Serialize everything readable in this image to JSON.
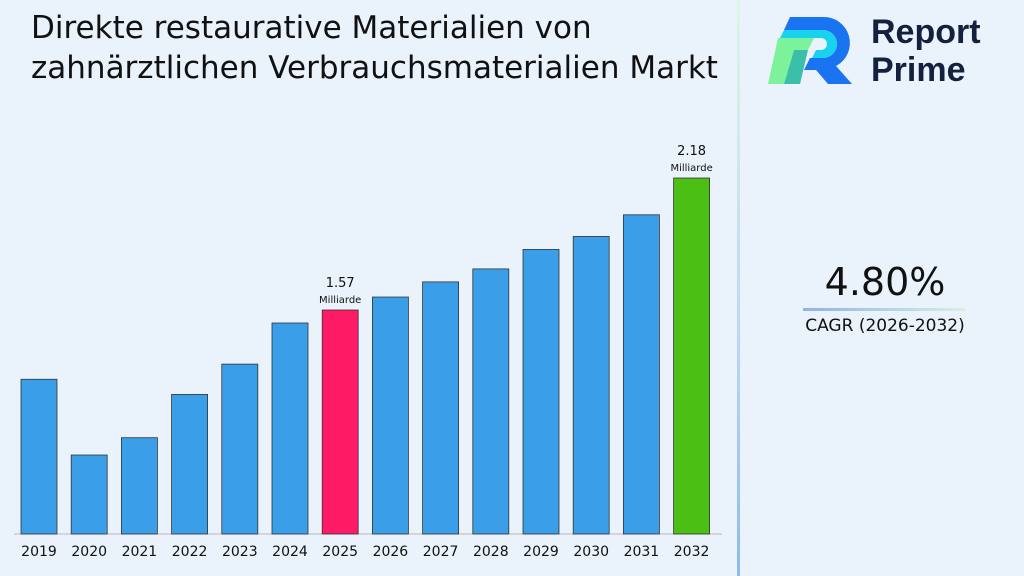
{
  "chart_data": {
    "type": "bar",
    "title": "Direkte restaurative Materialien von zahnärztlichen Verbrauchsmaterialien Markt",
    "categories": [
      "2019",
      "2020",
      "2021",
      "2022",
      "2023",
      "2024",
      "2025",
      "2026",
      "2027",
      "2028",
      "2029",
      "2030",
      "2031",
      "2032"
    ],
    "values": [
      1.25,
      0.9,
      0.98,
      1.18,
      1.32,
      1.51,
      1.57,
      1.63,
      1.7,
      1.76,
      1.85,
      1.91,
      2.01,
      2.18
    ],
    "data_labels": [
      {
        "category": "2025",
        "value": "1.57",
        "unit": "Milliarde"
      },
      {
        "category": "2032",
        "value": "2.18",
        "unit": "Milliarde"
      }
    ],
    "colors": {
      "default": "#3a9fe8",
      "highlight_2025": "#ff1a66",
      "highlight_2032": "#4cbf14"
    },
    "grid": false
  },
  "brand": {
    "line1": "Report",
    "line2": "Prime"
  },
  "cagr": {
    "value": "4.80%",
    "label": "CAGR (2026-2032)"
  }
}
